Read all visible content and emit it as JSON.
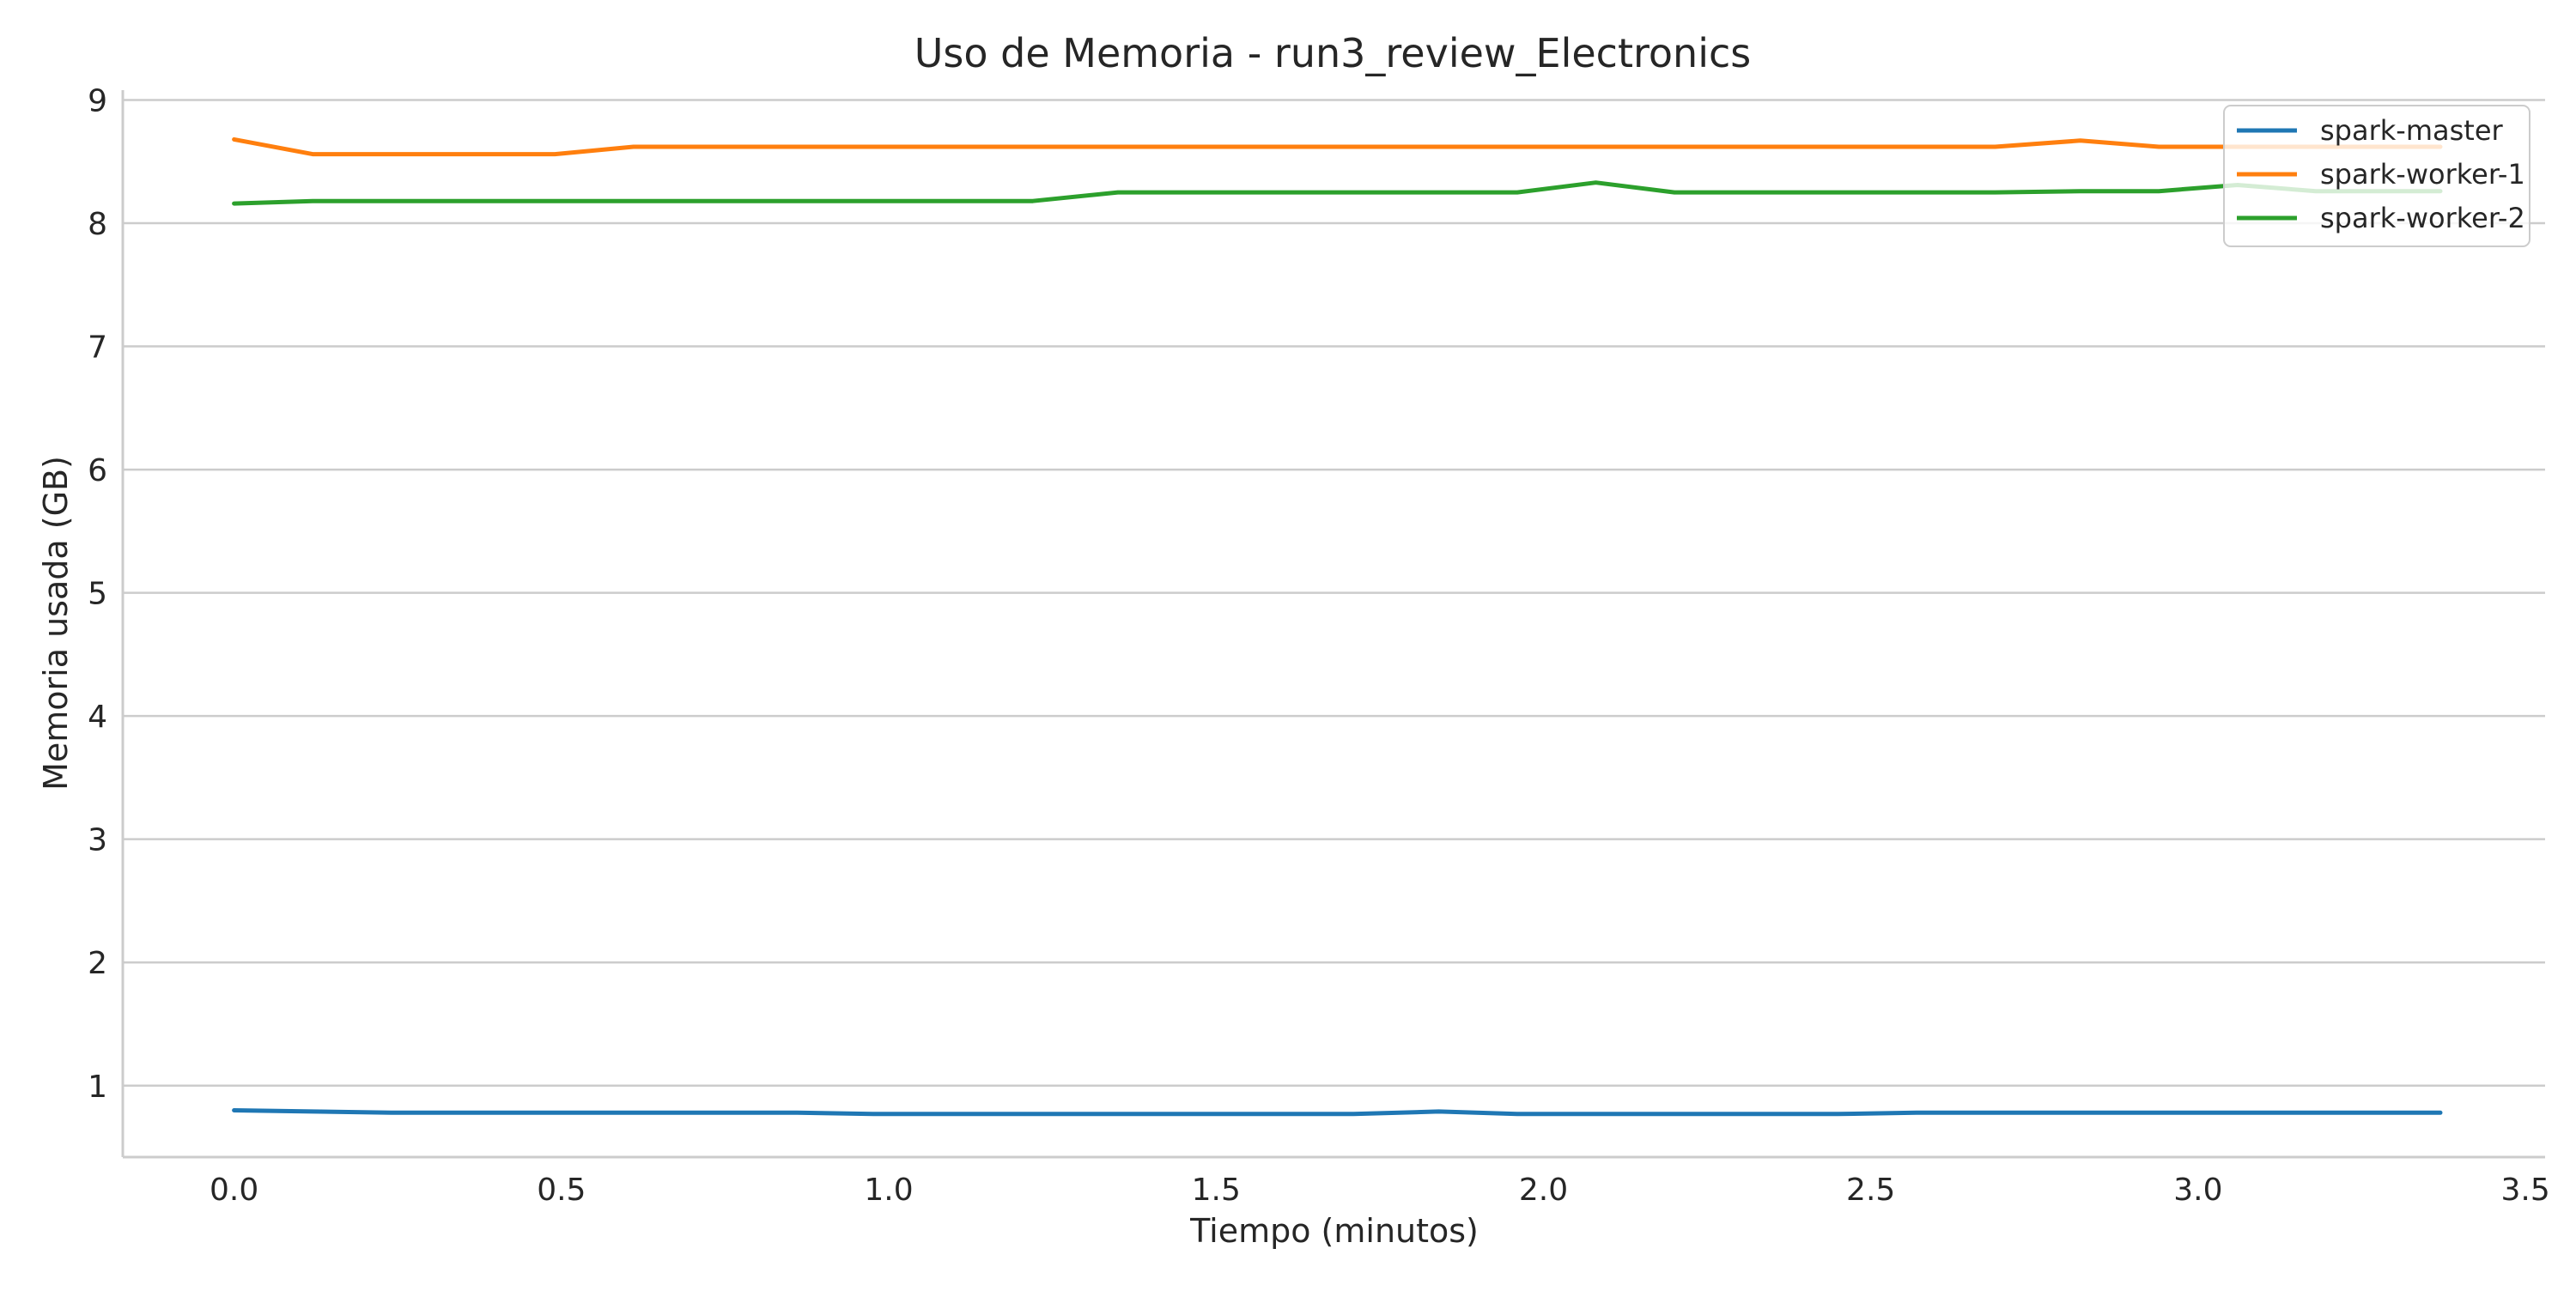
{
  "chart_data": {
    "type": "line",
    "title": "Uso de Memoria - run3_review_Electronics",
    "xlabel": "Tiempo (minutos)",
    "ylabel": "Memoria usada (GB)",
    "xlim": [
      -0.17,
      3.53
    ],
    "ylim": [
      0.42,
      9.08
    ],
    "xticks": [
      0.0,
      0.5,
      1.0,
      1.5,
      2.0,
      2.5,
      3.0,
      3.5
    ],
    "xtick_labels": [
      "0.0",
      "0.5",
      "1.0",
      "1.5",
      "2.0",
      "2.5",
      "3.0",
      "3.5"
    ],
    "yticks": [
      1,
      2,
      3,
      4,
      5,
      6,
      7,
      8,
      9
    ],
    "ytick_labels": [
      "1",
      "2",
      "3",
      "4",
      "5",
      "6",
      "7",
      "8",
      "9"
    ],
    "grid": "horizontal",
    "legend_position": "top-right",
    "x": [
      0.0,
      0.12,
      0.24,
      0.37,
      0.49,
      0.61,
      0.73,
      0.86,
      0.98,
      1.1,
      1.22,
      1.35,
      1.47,
      1.59,
      1.71,
      1.84,
      1.96,
      2.08,
      2.2,
      2.33,
      2.45,
      2.57,
      2.69,
      2.82,
      2.94,
      3.06,
      3.18,
      3.31,
      3.37
    ],
    "series": [
      {
        "name": "spark-master",
        "color": "#1f77b4",
        "values": [
          0.8,
          0.79,
          0.78,
          0.78,
          0.78,
          0.78,
          0.78,
          0.78,
          0.77,
          0.77,
          0.77,
          0.77,
          0.77,
          0.77,
          0.77,
          0.79,
          0.77,
          0.77,
          0.77,
          0.77,
          0.77,
          0.78,
          0.78,
          0.78,
          0.78,
          0.78,
          0.78,
          0.78,
          0.78
        ]
      },
      {
        "name": "spark-worker-1",
        "color": "#ff7f0e",
        "values": [
          8.68,
          8.56,
          8.56,
          8.56,
          8.56,
          8.62,
          8.62,
          8.62,
          8.62,
          8.62,
          8.62,
          8.62,
          8.62,
          8.62,
          8.62,
          8.62,
          8.62,
          8.62,
          8.62,
          8.62,
          8.62,
          8.62,
          8.62,
          8.67,
          8.62,
          8.62,
          8.62,
          8.62,
          8.62
        ]
      },
      {
        "name": "spark-worker-2",
        "color": "#2ca02c",
        "values": [
          8.16,
          8.18,
          8.18,
          8.18,
          8.18,
          8.18,
          8.18,
          8.18,
          8.18,
          8.18,
          8.18,
          8.25,
          8.25,
          8.25,
          8.25,
          8.25,
          8.25,
          8.33,
          8.25,
          8.25,
          8.25,
          8.25,
          8.25,
          8.26,
          8.26,
          8.31,
          8.26,
          8.26,
          8.26
        ]
      }
    ]
  }
}
